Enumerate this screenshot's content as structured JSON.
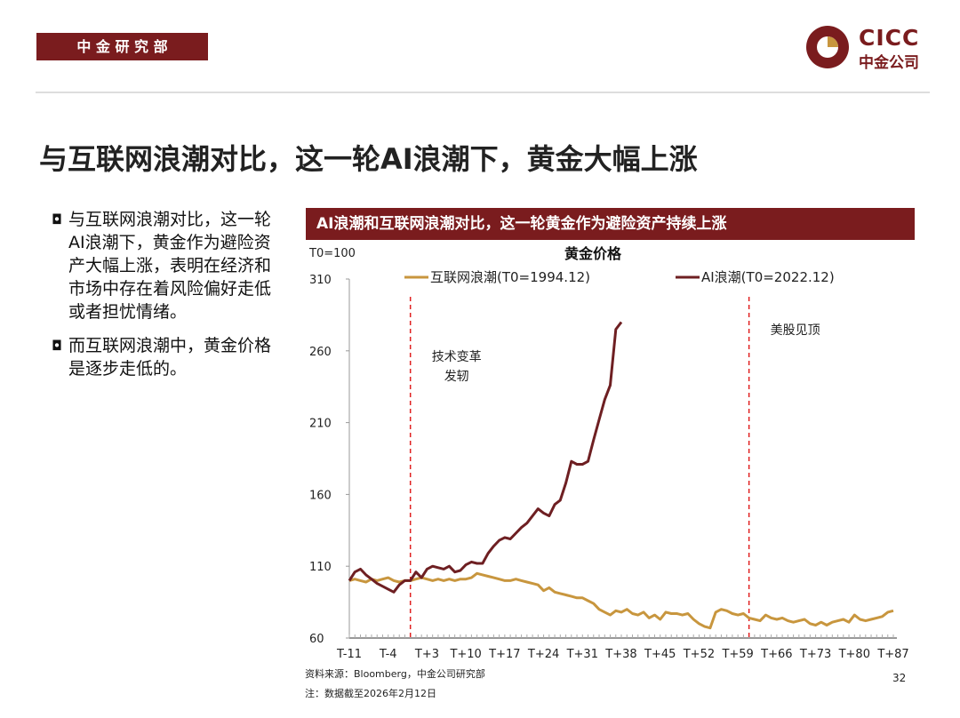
{
  "header": {
    "department": "中 金 研 究 部",
    "logo_text": "CICC",
    "logo_sub": "中金公司"
  },
  "title": "与互联网浪潮对比，这一轮AI浪潮下，黄金大幅上涨",
  "bullets": [
    "与互联网浪潮对比，这一轮AI浪潮下，黄金作为避险资产大幅上涨，表明在经济和市场中存在着风险偏好走低或者担忧情绪。",
    "而互联网浪潮中，黄金价格是逐步走低的。"
  ],
  "chart_header": "AI浪潮和互联网浪潮对比，这一轮黄金作为避险资产持续上涨",
  "chart_data": {
    "type": "line",
    "title": "黄金价格",
    "y_label": "T0=100",
    "categories": [
      "T-11",
      null,
      null,
      null,
      null,
      null,
      null,
      "T-4",
      null,
      null,
      null,
      null,
      null,
      null,
      "T+3",
      null,
      null,
      null,
      null,
      null,
      null,
      "T+10",
      null,
      null,
      null,
      null,
      null,
      null,
      "T+17",
      null,
      null,
      null,
      null,
      null,
      null,
      "T+24",
      null,
      null,
      null,
      null,
      null,
      null,
      "T+31",
      null,
      null,
      null,
      null,
      null,
      null,
      "T+38",
      null,
      null,
      null,
      null,
      null,
      null,
      "T+45",
      null,
      null,
      null,
      null,
      null,
      null,
      "T+52",
      null,
      null,
      null,
      null,
      null,
      null,
      "T+59",
      null,
      null,
      null,
      null,
      null,
      null,
      "T+66",
      null,
      null,
      null,
      null,
      null,
      null,
      "T+73",
      null,
      null,
      null,
      null,
      null,
      null,
      "T+80",
      null,
      null,
      null,
      null,
      null,
      null,
      "T+87"
    ],
    "series": [
      {
        "name": "互联网浪潮(T0=1994.12)",
        "color": "#c8963e",
        "values": [
          100,
          101,
          100,
          99,
          101,
          100,
          101,
          102,
          100,
          99,
          100,
          100,
          101,
          102,
          101,
          100,
          101,
          100,
          101,
          100,
          101,
          101,
          102,
          105,
          104,
          103,
          102,
          101,
          100,
          100,
          101,
          100,
          99,
          98,
          97,
          93,
          95,
          92,
          91,
          90,
          89,
          88,
          88,
          86,
          84,
          80,
          78,
          76,
          79,
          78,
          80,
          77,
          76,
          78,
          74,
          76,
          73,
          78,
          77,
          77,
          76,
          77,
          73,
          70,
          68,
          67,
          78,
          80,
          79,
          77,
          76,
          77,
          74,
          73,
          72,
          76,
          74,
          73,
          74,
          72,
          71,
          72,
          73,
          70,
          69,
          71,
          69,
          71,
          72,
          73,
          71,
          76,
          73,
          72,
          73,
          74,
          75,
          78,
          79
        ]
      },
      {
        "name": "AI浪潮(T0=2022.12)",
        "color": "#6e1f22",
        "values": [
          100,
          106,
          108,
          104,
          101,
          98,
          96,
          94,
          92,
          97,
          100,
          100,
          106,
          102,
          108,
          110,
          109,
          108,
          110,
          106,
          107,
          111,
          113,
          112,
          112,
          119,
          124,
          128,
          130,
          129,
          133,
          137,
          140,
          145,
          150,
          147,
          145,
          153,
          156,
          168,
          183,
          181,
          181,
          183,
          198,
          212,
          226,
          236,
          275,
          280,
          null,
          null,
          null,
          null,
          null,
          null,
          null,
          null,
          null,
          null,
          null,
          null,
          null,
          null,
          null,
          null,
          null,
          null,
          null,
          null,
          null,
          null,
          null,
          null,
          null,
          null,
          null,
          null,
          null,
          null,
          null,
          null,
          null,
          null,
          null,
          null,
          null,
          null,
          null,
          null,
          null,
          null,
          null,
          null,
          null,
          null,
          null,
          null,
          null
        ]
      }
    ],
    "ylim": [
      60,
      310
    ],
    "yticks": [
      60,
      110,
      160,
      210,
      260,
      310
    ],
    "vlines": [
      {
        "index": 11,
        "color": "#e02020",
        "label": [
          "技术变革",
          "发轫"
        ]
      },
      {
        "index": 72,
        "color": "#e02020",
        "label": [
          "美股见顶"
        ]
      }
    ]
  },
  "source": "资料来源：Bloomberg，中金公司研究部",
  "note": "注：数据截至2026年2月12日",
  "page_number": "32"
}
